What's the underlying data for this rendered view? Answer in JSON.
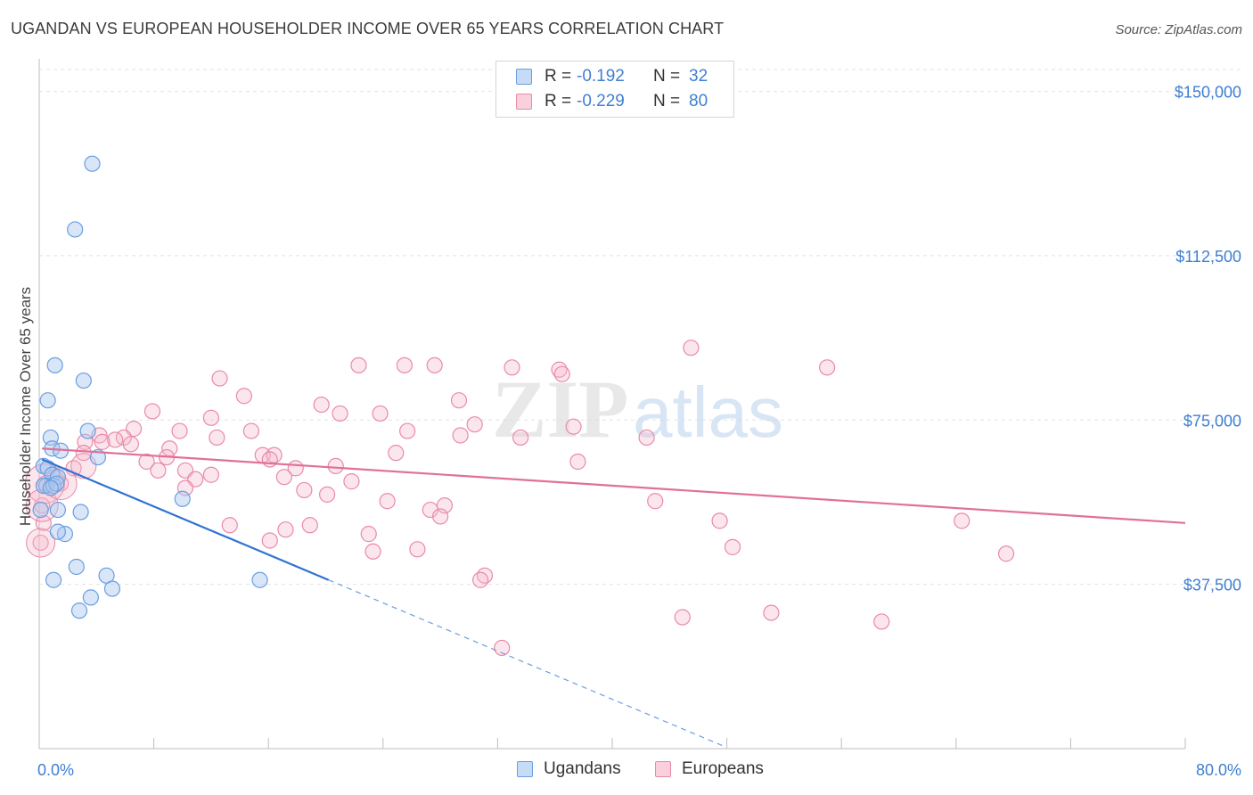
{
  "title": "UGANDAN VS EUROPEAN HOUSEHOLDER INCOME OVER 65 YEARS CORRELATION CHART",
  "source": "Source: ZipAtlas.com",
  "watermark": {
    "zip": "ZIP",
    "atlas": "atlas"
  },
  "legend": {
    "rows": [
      {
        "r_label": "R =",
        "r_value": "-0.192",
        "n_label": "N =",
        "n_value": "32"
      },
      {
        "r_label": "R =",
        "r_value": "-0.229",
        "n_label": "N =",
        "n_value": "80"
      }
    ]
  },
  "bottom_legend": [
    "Ugandans",
    "Europeans"
  ],
  "colors": {
    "ugandan_fill": "#a9c8f0",
    "ugandan_stroke": "#6a9ee0",
    "ugandan_line": "#2f74d0",
    "european_fill": "#f6b8cb",
    "european_stroke": "#e98aa8",
    "european_line": "#e0709a",
    "tick_text": "#3f7fd1"
  },
  "chart_data": {
    "type": "scatter",
    "title": "UGANDAN VS EUROPEAN HOUSEHOLDER INCOME OVER 65 YEARS CORRELATION CHART",
    "xlabel": "",
    "ylabel": "Householder Income Over 65 years",
    "xlim": [
      0,
      80
    ],
    "ylim": [
      0,
      155000
    ],
    "x_tick_labels": [
      "0.0%",
      "80.0%"
    ],
    "y_ticks": [
      37500,
      75000,
      112500,
      150000
    ],
    "y_tick_labels": [
      "$37,500",
      "$75,000",
      "$112,500",
      "$150,000"
    ],
    "grid": true,
    "series": [
      {
        "name": "Ugandans",
        "r": -0.192,
        "n": 32,
        "trend": {
          "x0": 0.2,
          "y0": 66000,
          "x1": 20.2,
          "y1": 38500,
          "dash_to_x": 47.8
        },
        "points": [
          [
            3.7,
            133500
          ],
          [
            2.5,
            118500
          ],
          [
            1.1,
            87500
          ],
          [
            3.1,
            84000
          ],
          [
            0.6,
            79500
          ],
          [
            3.4,
            72500
          ],
          [
            0.8,
            71000
          ],
          [
            0.9,
            68500
          ],
          [
            1.5,
            68000
          ],
          [
            4.1,
            66500
          ],
          [
            0.3,
            64500
          ],
          [
            0.6,
            64000
          ],
          [
            0.9,
            62500
          ],
          [
            1.3,
            62000
          ],
          [
            0.5,
            60000
          ],
          [
            0.3,
            60000
          ],
          [
            1.0,
            60000
          ],
          [
            1.2,
            60500
          ],
          [
            0.8,
            59500
          ],
          [
            10.0,
            57000
          ],
          [
            0.1,
            54500
          ],
          [
            1.3,
            54500
          ],
          [
            2.9,
            54000
          ],
          [
            1.8,
            49000
          ],
          [
            1.3,
            49500
          ],
          [
            2.6,
            41500
          ],
          [
            1.0,
            38500
          ],
          [
            4.7,
            39500
          ],
          [
            5.1,
            36500
          ],
          [
            15.4,
            38500
          ],
          [
            3.6,
            34500
          ],
          [
            2.8,
            31500
          ]
        ]
      },
      {
        "name": "Europeans",
        "r": -0.229,
        "n": 80,
        "trend": {
          "x0": 0.2,
          "y0": 68500,
          "x1": 80.0,
          "y1": 51500
        },
        "points": [
          [
            45.5,
            91500
          ],
          [
            22.3,
            87500
          ],
          [
            25.5,
            87500
          ],
          [
            27.6,
            87500
          ],
          [
            33.0,
            87000
          ],
          [
            36.3,
            86500
          ],
          [
            36.5,
            85500
          ],
          [
            55.0,
            87000
          ],
          [
            12.6,
            84500
          ],
          [
            14.3,
            80500
          ],
          [
            29.3,
            79500
          ],
          [
            19.7,
            78500
          ],
          [
            7.9,
            77000
          ],
          [
            21.0,
            76500
          ],
          [
            23.8,
            76500
          ],
          [
            12.0,
            75500
          ],
          [
            30.4,
            74000
          ],
          [
            37.3,
            73500
          ],
          [
            6.6,
            73000
          ],
          [
            4.2,
            71500
          ],
          [
            25.7,
            72500
          ],
          [
            9.8,
            72500
          ],
          [
            14.8,
            72500
          ],
          [
            29.4,
            71500
          ],
          [
            5.9,
            71000
          ],
          [
            12.4,
            71000
          ],
          [
            33.6,
            71000
          ],
          [
            42.4,
            71000
          ],
          [
            3.2,
            70000
          ],
          [
            4.4,
            70000
          ],
          [
            5.3,
            70500
          ],
          [
            6.4,
            69500
          ],
          [
            9.1,
            68500
          ],
          [
            3.1,
            67500
          ],
          [
            24.9,
            67500
          ],
          [
            15.6,
            67000
          ],
          [
            16.4,
            67000
          ],
          [
            8.9,
            66500
          ],
          [
            16.1,
            66000
          ],
          [
            7.5,
            65500
          ],
          [
            20.7,
            64500
          ],
          [
            17.9,
            64000
          ],
          [
            37.6,
            65500
          ],
          [
            2.4,
            64000
          ],
          [
            8.3,
            63500
          ],
          [
            10.2,
            63500
          ],
          [
            12.0,
            62500
          ],
          [
            17.1,
            62000
          ],
          [
            21.8,
            61000
          ],
          [
            10.9,
            61500
          ],
          [
            1.5,
            60500
          ],
          [
            10.2,
            59500
          ],
          [
            18.5,
            59000
          ],
          [
            20.1,
            58000
          ],
          [
            24.3,
            56500
          ],
          [
            43.0,
            56500
          ],
          [
            28.3,
            55500
          ],
          [
            27.3,
            54500
          ],
          [
            28.0,
            53000
          ],
          [
            47.5,
            52000
          ],
          [
            0.3,
            51500
          ],
          [
            13.3,
            51000
          ],
          [
            18.9,
            51000
          ],
          [
            17.2,
            50000
          ],
          [
            23.0,
            49000
          ],
          [
            64.4,
            52000
          ],
          [
            48.4,
            46000
          ],
          [
            16.1,
            47500
          ],
          [
            26.4,
            45500
          ],
          [
            23.3,
            45000
          ],
          [
            67.5,
            44500
          ],
          [
            31.1,
            39500
          ],
          [
            30.8,
            38500
          ],
          [
            0.1,
            47000
          ],
          [
            0.2,
            55500
          ],
          [
            0.4,
            60500
          ],
          [
            44.9,
            30000
          ],
          [
            51.1,
            31000
          ],
          [
            58.8,
            29000
          ],
          [
            32.3,
            23000
          ]
        ]
      }
    ]
  }
}
